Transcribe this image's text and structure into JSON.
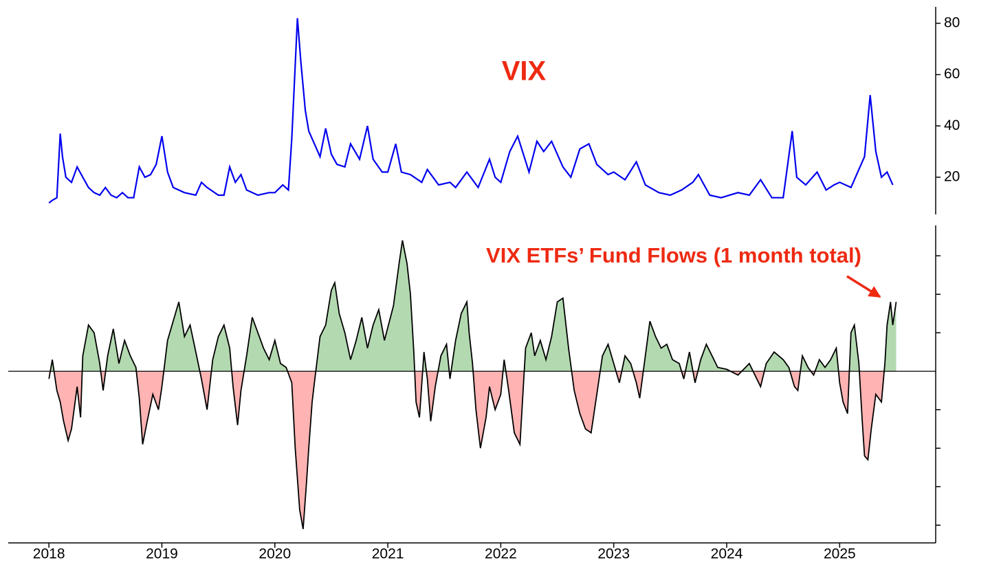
{
  "chart_data": [
    {
      "type": "line",
      "title": "VIX",
      "color": "#0000ee",
      "xlim": [
        2017.64,
        2025.85
      ],
      "ylim": [
        5.5,
        86.4
      ],
      "yticks": [
        20,
        40,
        60,
        80
      ],
      "x": [
        2018.0,
        2018.03,
        2018.07,
        2018.1,
        2018.12,
        2018.15,
        2018.2,
        2018.25,
        2018.3,
        2018.35,
        2018.4,
        2018.45,
        2018.5,
        2018.55,
        2018.6,
        2018.65,
        2018.7,
        2018.75,
        2018.8,
        2018.85,
        2018.9,
        2018.95,
        2019.0,
        2019.05,
        2019.1,
        2019.2,
        2019.3,
        2019.35,
        2019.4,
        2019.5,
        2019.55,
        2019.6,
        2019.65,
        2019.7,
        2019.75,
        2019.85,
        2019.95,
        2020.0,
        2020.07,
        2020.12,
        2020.15,
        2020.2,
        2020.23,
        2020.27,
        2020.3,
        2020.35,
        2020.4,
        2020.45,
        2020.5,
        2020.55,
        2020.62,
        2020.67,
        2020.75,
        2020.82,
        2020.87,
        2020.95,
        2021.0,
        2021.07,
        2021.12,
        2021.2,
        2021.3,
        2021.35,
        2021.45,
        2021.55,
        2021.6,
        2021.7,
        2021.8,
        2021.9,
        2021.95,
        2022.0,
        2022.08,
        2022.15,
        2022.25,
        2022.32,
        2022.38,
        2022.45,
        2022.55,
        2022.62,
        2022.7,
        2022.78,
        2022.85,
        2022.95,
        2023.0,
        2023.1,
        2023.2,
        2023.28,
        2023.4,
        2023.5,
        2023.6,
        2023.7,
        2023.75,
        2023.85,
        2023.95,
        2024.1,
        2024.2,
        2024.3,
        2024.4,
        2024.5,
        2024.58,
        2024.62,
        2024.7,
        2024.8,
        2024.88,
        2024.95,
        2025.0,
        2025.1,
        2025.15,
        2025.22,
        2025.27,
        2025.32,
        2025.37,
        2025.42,
        2025.47
      ],
      "values": [
        10,
        11,
        12,
        37,
        28,
        20,
        18,
        24,
        20,
        16,
        14,
        13,
        16,
        13,
        12,
        14,
        12,
        12,
        24,
        20,
        21,
        25,
        36,
        22,
        16,
        14,
        13,
        18,
        16,
        13,
        13,
        24,
        18,
        21,
        15,
        13,
        14,
        14,
        17,
        15,
        35,
        82,
        65,
        46,
        38,
        33,
        28,
        39,
        29,
        25,
        24,
        33,
        27,
        40,
        27,
        22,
        22,
        33,
        22,
        21,
        18,
        23,
        17,
        18,
        16,
        22,
        16,
        27,
        20,
        18,
        30,
        36,
        22,
        34,
        30,
        34,
        24,
        20,
        31,
        33,
        25,
        21,
        22,
        19,
        26,
        17,
        14,
        13,
        15,
        18,
        21,
        13,
        12,
        14,
        13,
        19,
        12,
        12,
        38,
        20,
        17,
        22,
        15,
        17,
        18,
        16,
        21,
        28,
        52,
        30,
        20,
        22,
        17
      ]
    },
    {
      "type": "area",
      "title": "VIX ETFs’ Fund Flows (1 month total)",
      "color": "#000000",
      "positive_color": "#b3d9b0",
      "negative_color": "#ffb3b3",
      "xlim": [
        2017.64,
        2025.85
      ],
      "xticks": [
        2018,
        2019,
        2020,
        2021,
        2022,
        2023,
        2024,
        2025
      ],
      "ylim": [
        -4.46,
        3.79
      ],
      "yticks": [
        -4,
        -3,
        -2,
        -1,
        1,
        2,
        3
      ],
      "show_ytick_labels": false,
      "x": [
        2018.0,
        2018.03,
        2018.07,
        2018.1,
        2018.13,
        2018.17,
        2018.2,
        2018.25,
        2018.28,
        2018.3,
        2018.35,
        2018.4,
        2018.45,
        2018.48,
        2018.52,
        2018.57,
        2018.62,
        2018.67,
        2018.72,
        2018.77,
        2018.8,
        2018.83,
        2018.87,
        2018.92,
        2018.97,
        2019.0,
        2019.05,
        2019.1,
        2019.15,
        2019.2,
        2019.25,
        2019.3,
        2019.35,
        2019.4,
        2019.45,
        2019.5,
        2019.55,
        2019.6,
        2019.63,
        2019.67,
        2019.7,
        2019.75,
        2019.8,
        2019.85,
        2019.9,
        2019.95,
        2020.0,
        2020.05,
        2020.1,
        2020.15,
        2020.18,
        2020.22,
        2020.25,
        2020.28,
        2020.3,
        2020.33,
        2020.35,
        2020.4,
        2020.45,
        2020.5,
        2020.53,
        2020.57,
        2020.62,
        2020.67,
        2020.72,
        2020.77,
        2020.82,
        2020.87,
        2020.92,
        2020.97,
        2021.05,
        2021.1,
        2021.13,
        2021.17,
        2021.2,
        2021.23,
        2021.25,
        2021.28,
        2021.32,
        2021.35,
        2021.38,
        2021.42,
        2021.47,
        2021.52,
        2021.55,
        2021.6,
        2021.65,
        2021.7,
        2021.72,
        2021.75,
        2021.78,
        2021.82,
        2021.87,
        2021.9,
        2021.95,
        2022.0,
        2022.03,
        2022.07,
        2022.12,
        2022.17,
        2022.22,
        2022.27,
        2022.3,
        2022.35,
        2022.4,
        2022.45,
        2022.5,
        2022.55,
        2022.6,
        2022.65,
        2022.7,
        2022.75,
        2022.8,
        2022.85,
        2022.9,
        2022.95,
        2023.0,
        2023.05,
        2023.1,
        2023.15,
        2023.2,
        2023.23,
        2023.28,
        2023.32,
        2023.37,
        2023.42,
        2023.47,
        2023.52,
        2023.58,
        2023.62,
        2023.67,
        2023.72,
        2023.77,
        2023.82,
        2023.87,
        2023.92,
        2024.0,
        2024.1,
        2024.15,
        2024.2,
        2024.25,
        2024.3,
        2024.35,
        2024.42,
        2024.5,
        2024.55,
        2024.6,
        2024.63,
        2024.67,
        2024.72,
        2024.77,
        2024.82,
        2024.87,
        2024.92,
        2024.97,
        2025.0,
        2025.03,
        2025.07,
        2025.1,
        2025.13,
        2025.17,
        2025.2,
        2025.22,
        2025.25,
        2025.28,
        2025.32,
        2025.37,
        2025.4,
        2025.42,
        2025.45,
        2025.47,
        2025.5
      ],
      "values": [
        -0.2,
        0.3,
        -0.5,
        -0.8,
        -1.3,
        -1.8,
        -1.5,
        -0.4,
        -1.2,
        0.4,
        1.2,
        1.0,
        0.2,
        -0.5,
        0.4,
        1.1,
        0.2,
        0.8,
        0.4,
        0.1,
        -0.7,
        -1.9,
        -1.3,
        -0.6,
        -1.0,
        -0.4,
        0.8,
        1.3,
        1.8,
        0.9,
        1.2,
        0.5,
        -0.2,
        -1.0,
        0.3,
        0.9,
        1.2,
        0.6,
        -0.4,
        -1.4,
        -0.5,
        0.4,
        1.4,
        1.0,
        0.6,
        0.3,
        0.8,
        0.2,
        0.1,
        -0.3,
        -2.0,
        -3.6,
        -4.1,
        -2.9,
        -2.0,
        -0.8,
        -0.3,
        0.9,
        1.2,
        2.1,
        2.3,
        1.5,
        1.0,
        0.3,
        0.8,
        1.4,
        0.6,
        1.2,
        1.6,
        0.8,
        1.7,
        2.8,
        3.4,
        2.8,
        2.0,
        0.5,
        -0.8,
        -1.2,
        0.5,
        -0.2,
        -1.3,
        -0.4,
        0.4,
        0.7,
        -0.2,
        0.8,
        1.5,
        1.8,
        1.0,
        0.2,
        -1.0,
        -2.0,
        -1.2,
        -0.4,
        -1.0,
        -0.6,
        0.3,
        -0.5,
        -1.6,
        -1.9,
        0.6,
        1.0,
        0.4,
        0.8,
        0.3,
        0.9,
        1.8,
        1.9,
        0.6,
        -0.5,
        -1.1,
        -1.5,
        -1.6,
        -0.6,
        0.4,
        0.7,
        0.2,
        -0.3,
        0.4,
        0.2,
        -0.3,
        -0.7,
        0.4,
        1.3,
        0.9,
        0.6,
        0.7,
        0.3,
        0.2,
        -0.2,
        0.5,
        -0.3,
        0.3,
        0.7,
        0.4,
        0.1,
        0.05,
        -0.1,
        0.05,
        0.2,
        -0.1,
        -0.4,
        0.2,
        0.5,
        0.3,
        0.1,
        -0.4,
        -0.5,
        0.4,
        0.1,
        -0.1,
        0.3,
        0.1,
        0.3,
        0.6,
        -0.3,
        -0.8,
        -1.1,
        1.0,
        1.2,
        0.2,
        -1.3,
        -2.2,
        -2.3,
        -1.5,
        -0.6,
        -0.8,
        0.2,
        1.2,
        1.8,
        1.2,
        1.8
      ]
    }
  ]
}
